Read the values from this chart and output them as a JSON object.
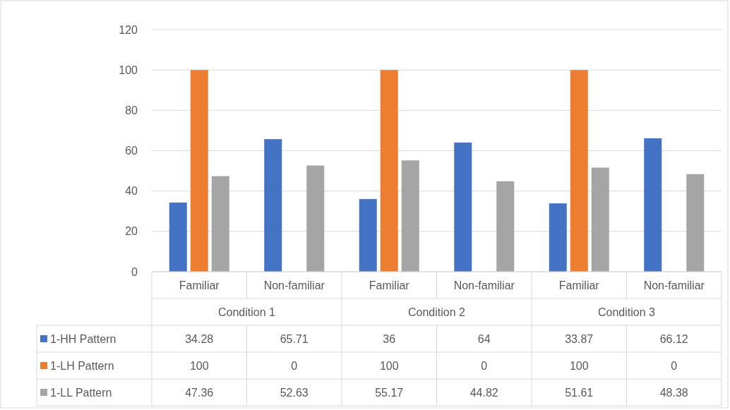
{
  "chart_data": {
    "type": "bar",
    "categories": [
      "Familiar",
      "Non-familiar",
      "Familiar",
      "Non-familiar",
      "Familiar",
      "Non-familiar"
    ],
    "annotations": [
      "Condition 1",
      "Condition 2",
      "Condition 3"
    ],
    "series": [
      {
        "name": "1-HH Pattern",
        "color": "#4472c4",
        "values": [
          34.28,
          65.71,
          36,
          64,
          33.87,
          66.12
        ]
      },
      {
        "name": "1-LH Pattern",
        "color": "#ed7d31",
        "values": [
          100,
          0,
          100,
          0,
          100,
          0
        ]
      },
      {
        "name": "1-LL Pattern",
        "color": "#a5a5a5",
        "values": [
          47.36,
          52.63,
          55.17,
          44.82,
          51.61,
          48.38
        ]
      }
    ],
    "ylim": [
      0,
      120
    ],
    "yticks": [
      0,
      20,
      40,
      60,
      80,
      100,
      120
    ],
    "grid": "y",
    "legend": "left",
    "data_labels": true
  }
}
